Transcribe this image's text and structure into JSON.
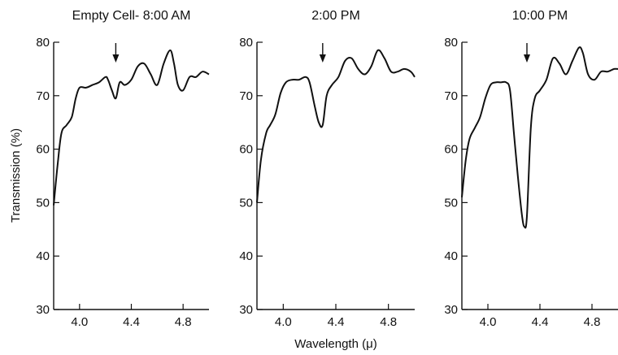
{
  "figure": {
    "ylabel": "Transmission (%)",
    "xlabel": "Wavelength (μ)"
  },
  "chart_data": [
    {
      "type": "line",
      "title": "Empty Cell- 8:00 AM",
      "ylim": [
        30,
        80
      ],
      "xlim": [
        3.8,
        5.0
      ],
      "yticks": [
        30,
        40,
        50,
        60,
        70,
        80
      ],
      "xticks": [
        4.0,
        4.4,
        4.8
      ],
      "ylabel": "Transmission (%)",
      "xlabel": "",
      "arrow_x": 4.28,
      "series": [
        {
          "x": [
            3.8,
            3.83,
            3.86,
            3.9,
            3.94,
            3.97,
            4.0,
            4.05,
            4.1,
            4.15,
            4.2,
            4.22,
            4.25,
            4.28,
            4.31,
            4.35,
            4.4,
            4.45,
            4.5,
            4.55,
            4.6,
            4.65,
            4.7,
            4.73,
            4.76,
            4.8,
            4.85,
            4.9,
            4.95,
            5.0
          ],
          "y": [
            49.5,
            57,
            63,
            64.5,
            66,
            69.5,
            71.5,
            71.5,
            72,
            72.5,
            73.5,
            73,
            71,
            69.5,
            72.5,
            72,
            73,
            75.5,
            76,
            74,
            72,
            76,
            78.5,
            76,
            72,
            71,
            73.5,
            73.5,
            74.5,
            74
          ]
        }
      ]
    },
    {
      "type": "line",
      "title": "2:00 PM",
      "ylim": [
        30,
        80
      ],
      "xlim": [
        3.8,
        5.0
      ],
      "yticks": [
        30,
        40,
        50,
        60,
        70,
        80
      ],
      "xticks": [
        4.0,
        4.4,
        4.8
      ],
      "ylabel": "",
      "xlabel": "Wavelength (μ)",
      "arrow_x": 4.3,
      "series": [
        {
          "x": [
            3.8,
            3.83,
            3.87,
            3.9,
            3.94,
            3.98,
            4.02,
            4.07,
            4.12,
            4.17,
            4.2,
            4.24,
            4.27,
            4.3,
            4.33,
            4.37,
            4.42,
            4.47,
            4.52,
            4.57,
            4.62,
            4.67,
            4.72,
            4.77,
            4.82,
            4.87,
            4.92,
            4.97,
            5.0
          ],
          "y": [
            50,
            58,
            63,
            64.5,
            66.5,
            70.5,
            72.5,
            73,
            73,
            73.5,
            72.5,
            68,
            65,
            64.5,
            70,
            72,
            73.5,
            76.5,
            77,
            75,
            74,
            75.5,
            78.5,
            77,
            74.5,
            74.5,
            75,
            74.5,
            73.5
          ]
        }
      ]
    },
    {
      "type": "line",
      "title": "10:00 PM",
      "ylim": [
        30,
        80
      ],
      "xlim": [
        3.8,
        5.0
      ],
      "yticks": [
        30,
        40,
        50,
        60,
        70,
        80
      ],
      "xticks": [
        4.0,
        4.4,
        4.8
      ],
      "ylabel": "",
      "xlabel": "",
      "arrow_x": 4.3,
      "series": [
        {
          "x": [
            3.8,
            3.83,
            3.86,
            3.9,
            3.94,
            3.98,
            4.02,
            4.06,
            4.1,
            4.14,
            4.17,
            4.2,
            4.23,
            4.26,
            4.28,
            4.3,
            4.33,
            4.36,
            4.4,
            4.45,
            4.5,
            4.55,
            4.6,
            4.65,
            4.7,
            4.73,
            4.77,
            4.82,
            4.87,
            4.92,
            4.97,
            5.0
          ],
          "y": [
            51,
            58,
            62,
            64,
            66,
            69.5,
            72,
            72.5,
            72.5,
            72.5,
            71,
            63,
            55,
            48,
            45.5,
            47.5,
            64,
            69.5,
            71,
            73,
            77,
            76,
            74,
            76.5,
            79,
            78,
            74,
            73,
            74.5,
            74.5,
            75,
            75
          ]
        }
      ]
    }
  ]
}
